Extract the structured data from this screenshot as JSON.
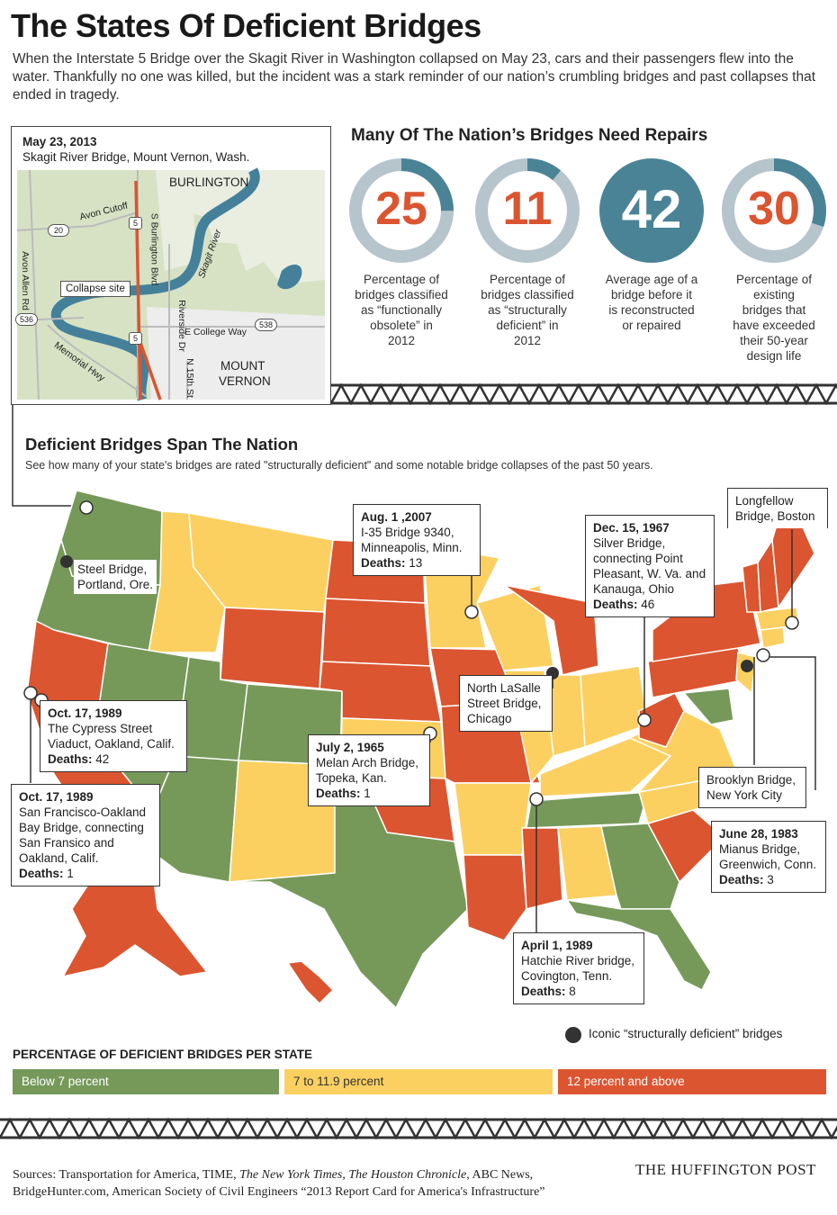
{
  "title": "The States Of Deficient Bridges",
  "intro": "When the Interstate 5 Bridge over the Skagit River in Washington collapsed on May 23, cars and their passengers flew into the water. Thankfully no one was killed, but the incident was a stark reminder of our nation’s crumbling bridges and past collapses that ended in tragedy.",
  "inset_map": {
    "date": "May 23, 2013",
    "location": "Skagit River Bridge, Mount Vernon, Wash.",
    "labels": {
      "burlington": "BURLINGTON",
      "mount": "MOUNT",
      "vernon": "VERNON",
      "avon_cutoff": "Avon Cutoff",
      "avon_allen": "Avon Allen Rd",
      "burlington_blvd": "S Burlington Blvd",
      "riverside": "Riverside Dr",
      "skagit": "Skagit River",
      "college_way": "E College Way",
      "memorial": "Memorial Hwy",
      "n15th": "N 15th St",
      "collapse_site": "Collapse site"
    },
    "shields": [
      "20",
      "5",
      "536",
      "5",
      "538"
    ]
  },
  "stats": {
    "heading": "Many Of The Nation’s Bridges Need Repairs",
    "items": [
      {
        "value": "25",
        "percent": 25,
        "caption_lines": [
          "Percentage of",
          "bridges classified",
          "as “functionally",
          "obsolete” in",
          "2012"
        ]
      },
      {
        "value": "11",
        "percent": 11,
        "caption_lines": [
          "Percentage of",
          "bridges classified",
          "as “structurally",
          "deficient” in",
          "2012"
        ]
      },
      {
        "value": "42",
        "percent": 100,
        "caption_lines": [
          "Average age of a",
          "bridge before it",
          "is reconstructed",
          "or repaired"
        ]
      },
      {
        "value": "30",
        "percent": 30,
        "caption_lines": [
          "Percentage of",
          "existing",
          "bridges that",
          "have exceeded",
          "their 50-year",
          "design life"
        ]
      }
    ]
  },
  "nation": {
    "heading": "Deficient Bridges Span The Nation",
    "subheading": "See how many of your state's bridges are rated \"structurally deficient\" and some notable bridge collapses of the past 50 years."
  },
  "callouts": {
    "steel": {
      "name": "Steel Bridge,",
      "place": "Portland, Ore."
    },
    "i35": {
      "date": "Aug. 1 ,2007",
      "l1": "I-35 Bridge 9340,",
      "l2": "Minneapolis, Minn.",
      "deaths_label": "Deaths:",
      "deaths": "13"
    },
    "silver": {
      "date": "Dec. 15, 1967",
      "l1": "Silver Bridge,",
      "l2": "connecting Point",
      "l3": "Pleasant, W. Va. and",
      "l4": "Kanauga, Ohio",
      "deaths_label": "Deaths:",
      "deaths": "46"
    },
    "longfellow": {
      "l1": "Longfellow",
      "l2": "Bridge, Boston"
    },
    "lasalle": {
      "l1": "North LaSalle",
      "l2": "Street Bridge,",
      "l3": "Chicago"
    },
    "cypress": {
      "date": "Oct. 17, 1989",
      "l1": "The Cypress Street",
      "l2": "Viaduct, Oakland, Calif.",
      "deaths_label": "Deaths:",
      "deaths": "42"
    },
    "melan": {
      "date": "July 2, 1965",
      "l1": "Melan Arch Bridge,",
      "l2": "Topeka, Kan.",
      "deaths_label": "Deaths:",
      "deaths": "1"
    },
    "bay": {
      "date": "Oct. 17, 1989",
      "l1": "San Francisco-Oakland",
      "l2": "Bay Bridge, connecting",
      "l3": "San Fransico and",
      "l4": "Oakland, Calif.",
      "deaths_label": "Deaths:",
      "deaths": "1"
    },
    "brooklyn": {
      "l1": "Brooklyn Bridge,",
      "l2": "New York City"
    },
    "mianus": {
      "date": "June 28, 1983",
      "l1": "Mianus Bridge,",
      "l2": "Greenwich, Conn.",
      "deaths_label": "Deaths:",
      "deaths": "3"
    },
    "hatchie": {
      "date": "April 1, 1989",
      "l1": "Hatchie River bridge,",
      "l2": "Covington, Tenn.",
      "deaths_label": "Deaths:",
      "deaths": "8"
    }
  },
  "legend": {
    "iconic": "Iconic “structurally deficient” bridges",
    "heading": "PERCENTAGE OF DEFICIENT BRIDGES PER STATE",
    "bins": [
      {
        "label": "Below 7 percent",
        "color": "#76995a"
      },
      {
        "label": "7 to 11.9 percent",
        "color": "#fbd060"
      },
      {
        "label": "12 percent and above",
        "color": "#db5530"
      }
    ]
  },
  "colors": {
    "green": "#76995a",
    "yellow": "#fbd060",
    "red": "#db5530",
    "teal": "#4a8396",
    "ring_bg": "#b6c4cc"
  },
  "sources_line1_a": "Sources: Transportation for America, TIME, ",
  "sources_nyt": "The New York Times",
  "sources_line1_b": ", ",
  "sources_houston": "The Houston Chronicle",
  "sources_line1_c": ", ABC News,",
  "sources_line2": "BridgeHunter.com, American Society of Civil Engineers “2013 Report Card for America's Infrastructure”",
  "brand": "THE HUFFINGTON POST"
}
